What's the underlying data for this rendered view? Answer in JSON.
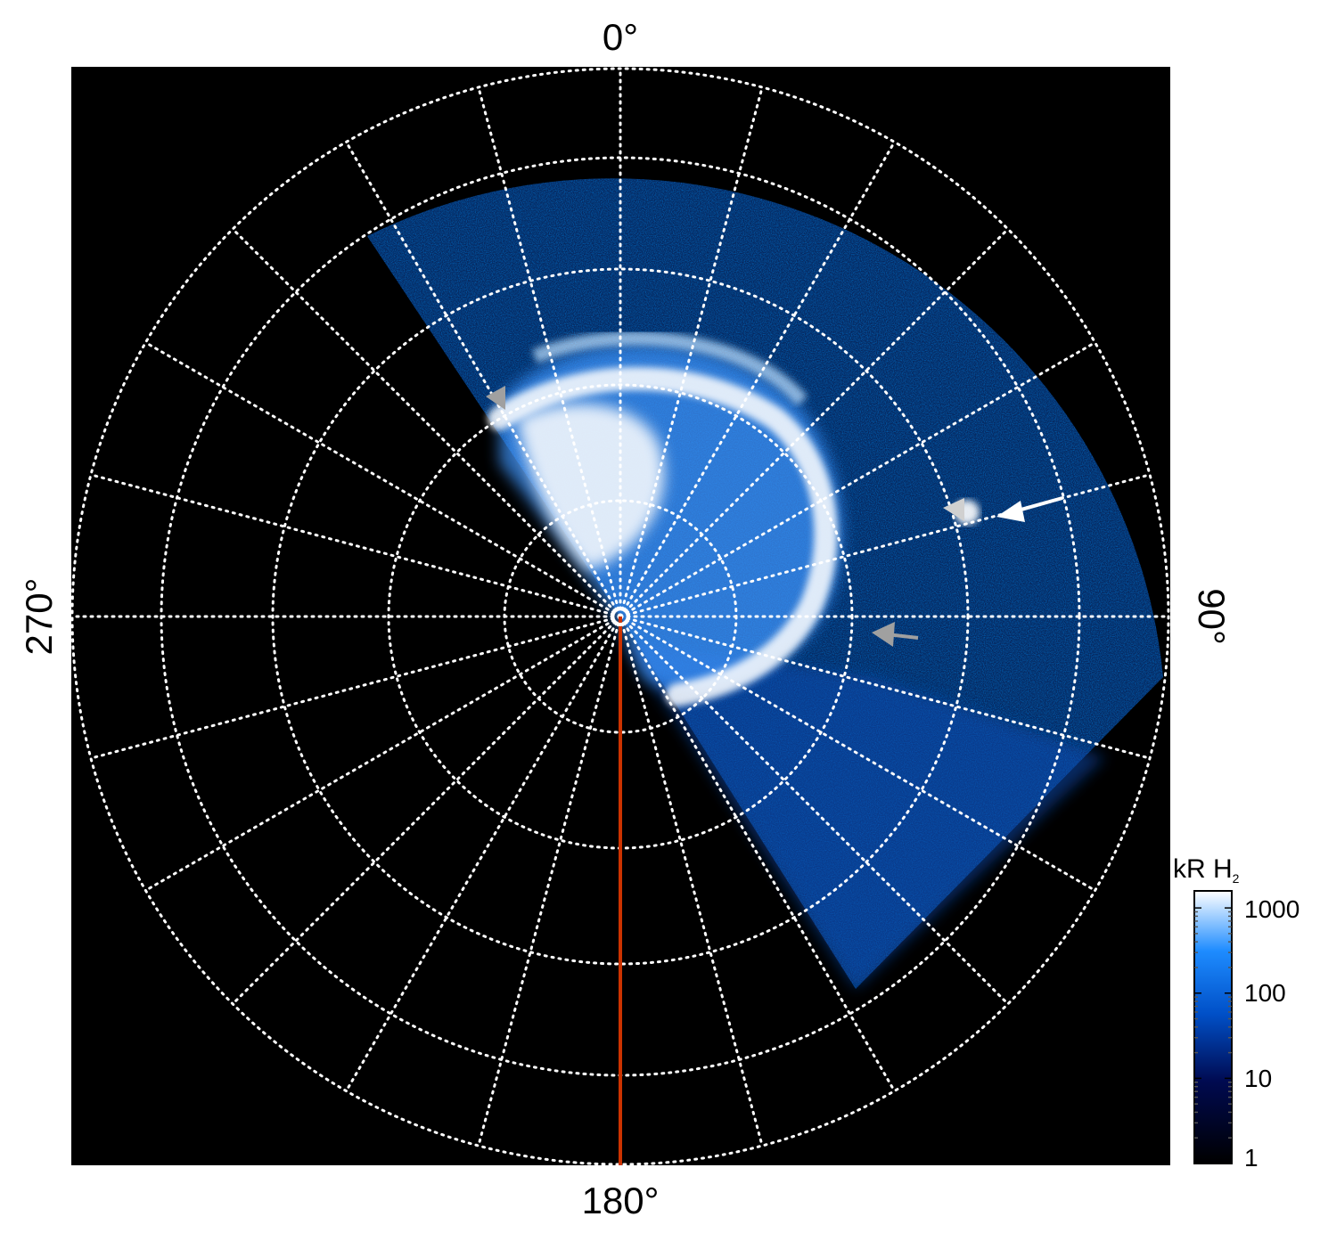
{
  "figure": {
    "labels": {
      "top": "0°",
      "bottom": "180°",
      "left": "270°",
      "right": "90°"
    },
    "colorbar": {
      "title_main": "kR H",
      "title_sub": "2",
      "scale": "log",
      "ticks": [
        "1000",
        "100",
        "10",
        "1"
      ],
      "colors": {
        "low": "#000000",
        "mid1": "#000a50",
        "mid2": "#0050c8",
        "mid3": "#1e8cff",
        "high": "#ffffff"
      }
    },
    "colors": {
      "background": "#000000",
      "grid": "#ffffff",
      "meridian_line": "#cc3300",
      "arrow_white": "#ffffff",
      "arrow_grey": "#a0a0a0"
    },
    "annotations": {
      "arrows": [
        "white-arrow",
        "grey-arrow",
        "grey-triangle-1",
        "grey-triangle-2",
        "grey-triangle-3"
      ]
    }
  }
}
